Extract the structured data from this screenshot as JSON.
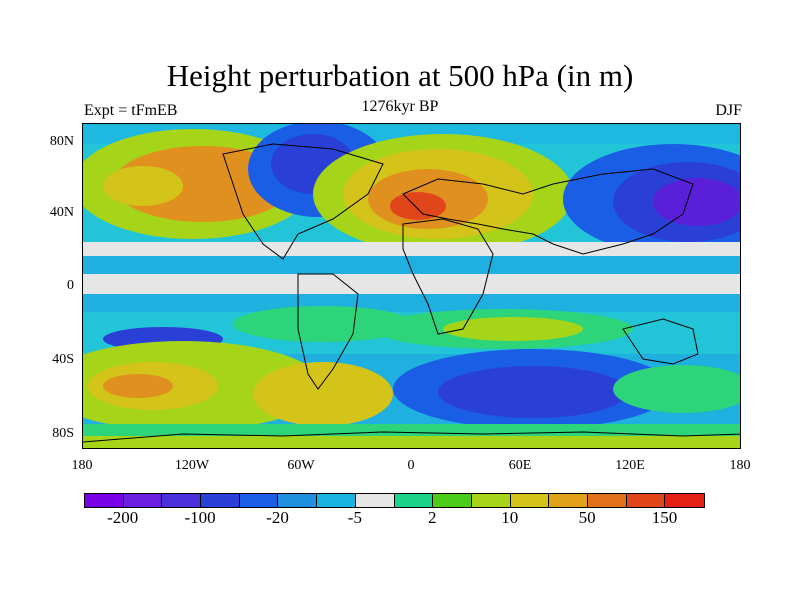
{
  "title": "Height perturbation at 500 hPa (in m)",
  "left_label": "Expt = tFmEB",
  "center_label": "1276kyr BP",
  "right_label": "DJF",
  "lat_ticks": [
    "80N",
    "40N",
    "0",
    "40S",
    "80S"
  ],
  "lon_ticks": [
    "180",
    "120W",
    "60W",
    "0",
    "60E",
    "120E",
    "180"
  ],
  "colorbar": {
    "colors": [
      "#7a00e6",
      "#6a1fe0",
      "#4b2fd8",
      "#2a3fd6",
      "#1a5ee6",
      "#1f8fe0",
      "#19b4e0",
      "#e6e6e6",
      "#19d48a",
      "#4bcc19",
      "#a6d419",
      "#d4c419",
      "#e0a019",
      "#e07019",
      "#e04619",
      "#e61f14"
    ],
    "labels": [
      "-200",
      "-100",
      "-20",
      "-5",
      "2",
      "10",
      "50",
      "150"
    ]
  },
  "colors": {
    "deep_negative": "#5a1fd8",
    "negative": "#2a5ee6",
    "slight_negative": "#1fb0e0",
    "neutral": "#e6e6e6",
    "slight_positive": "#2ed47a",
    "positive": "#a6d419",
    "strong_positive": "#e0901f",
    "extreme_positive": "#e0461f"
  }
}
